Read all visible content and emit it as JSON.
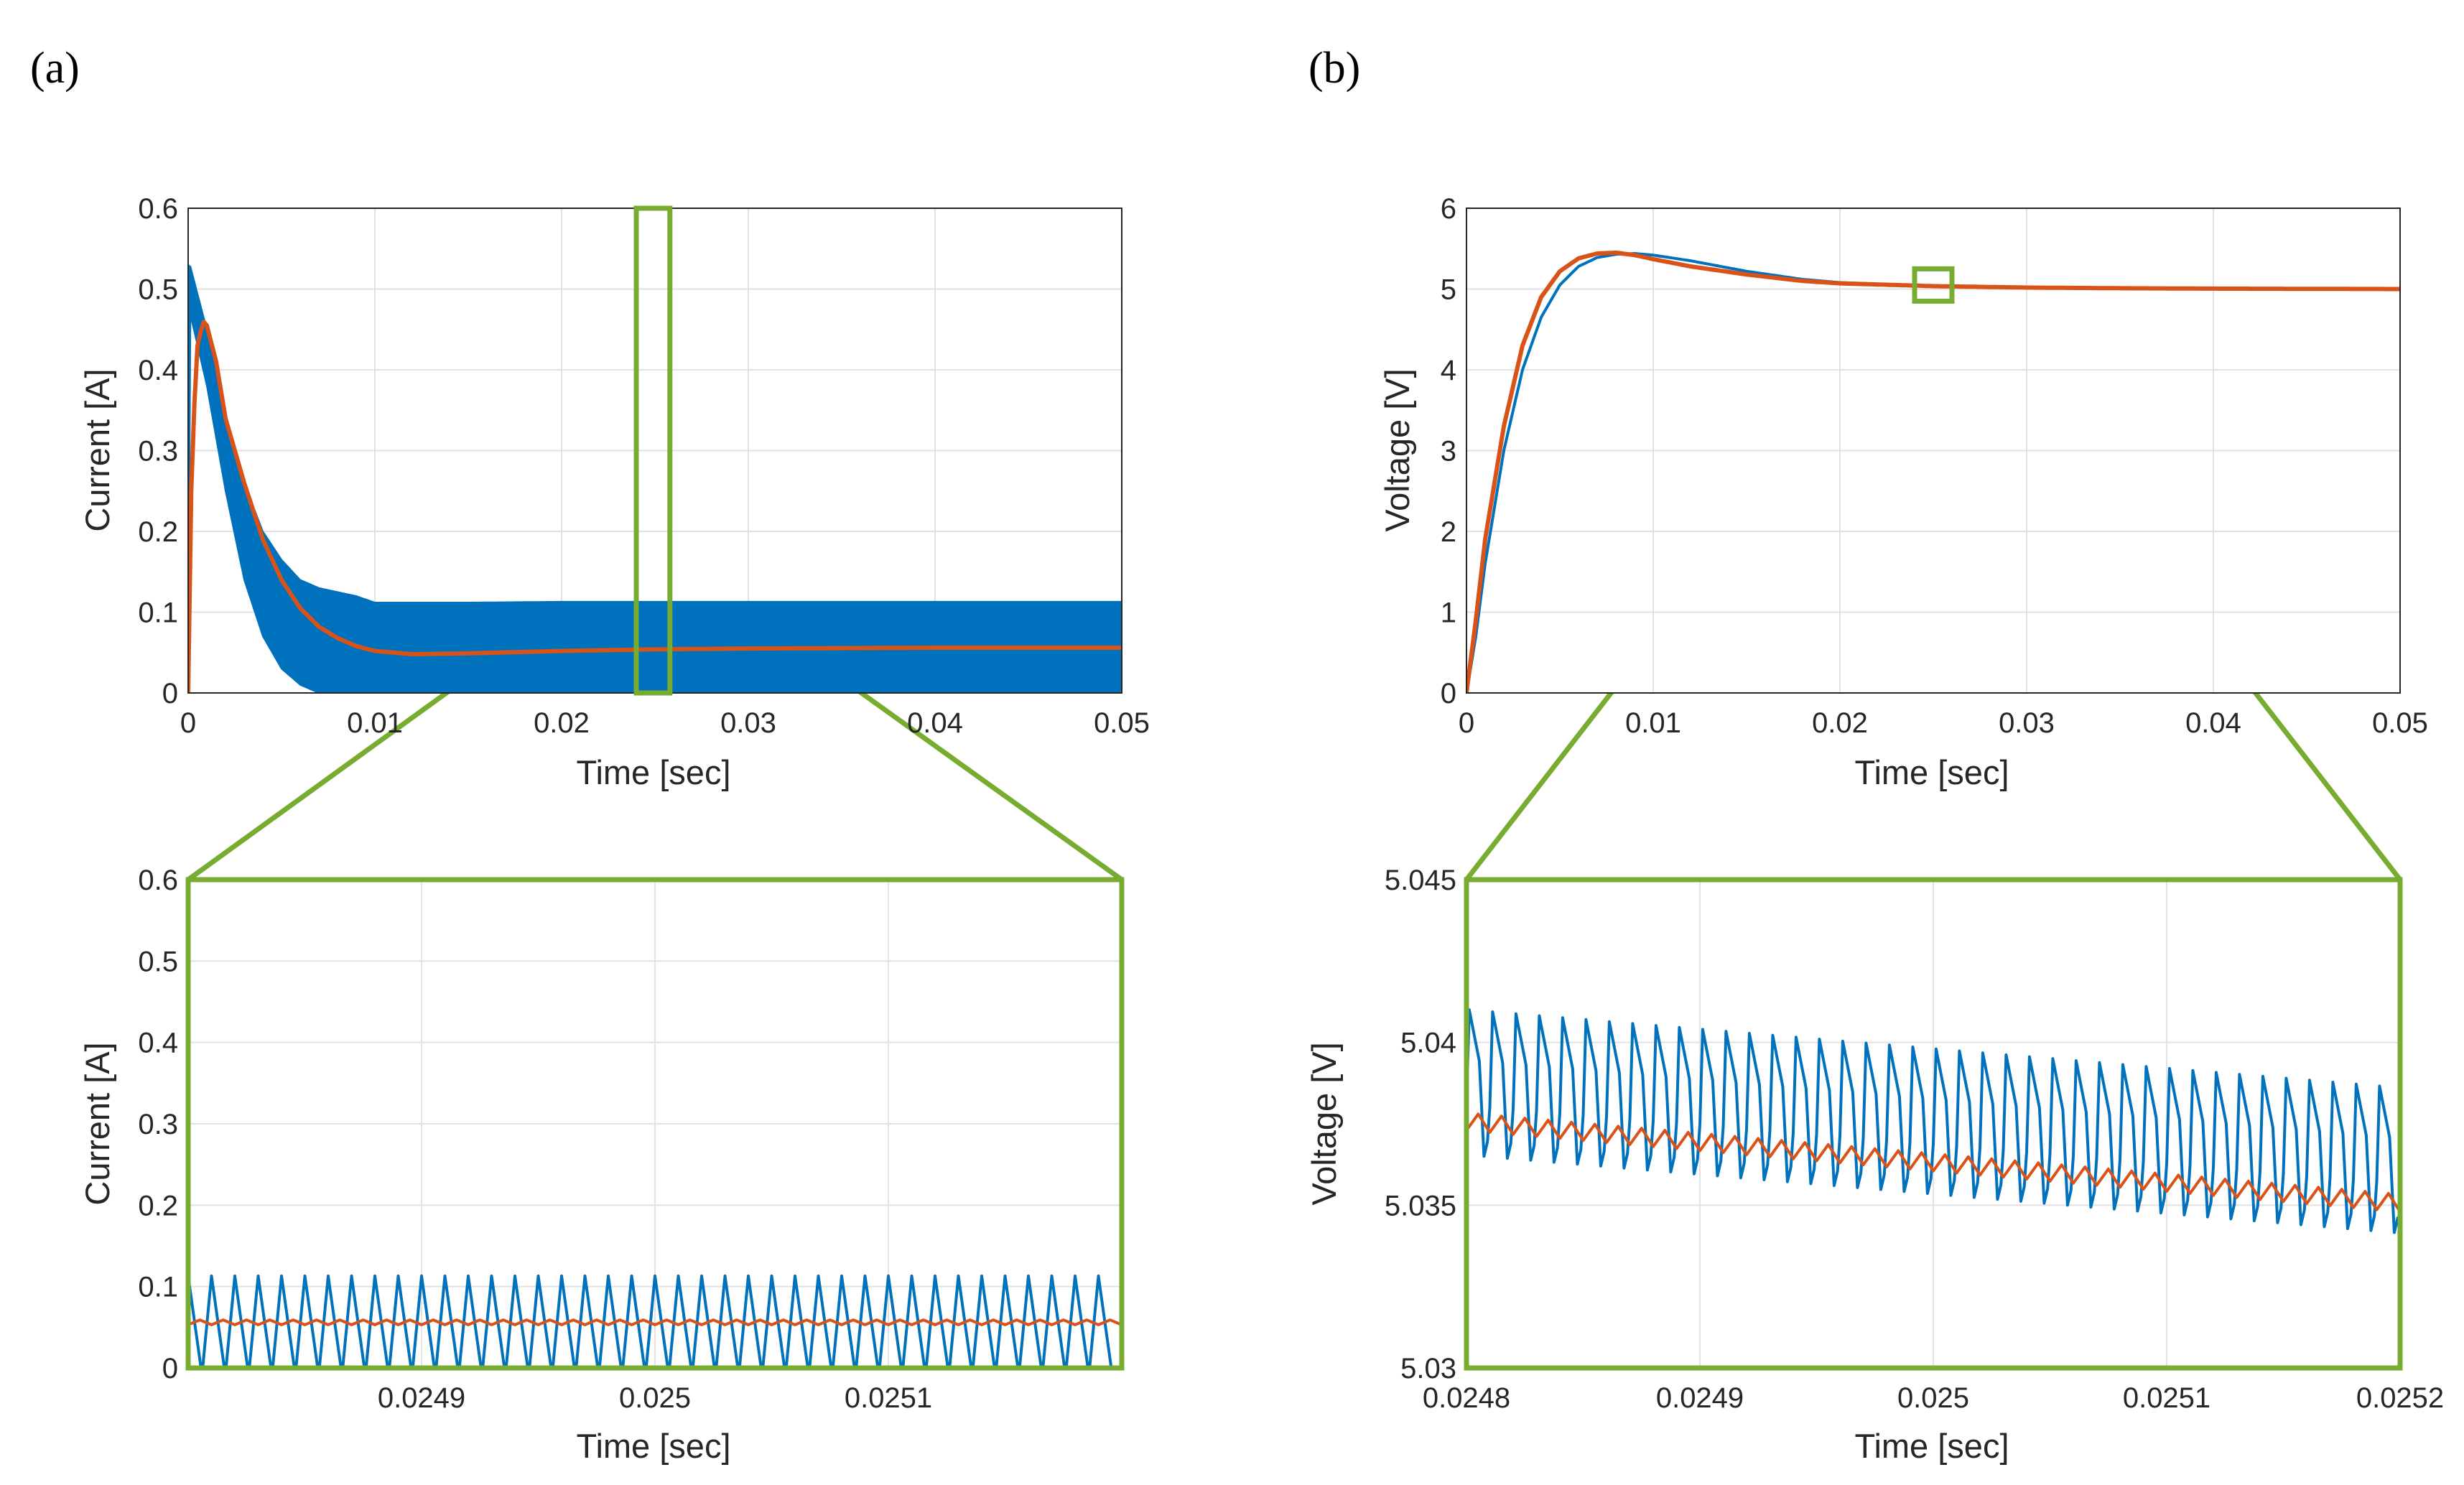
{
  "panels": [
    {
      "label": "(a)"
    },
    {
      "label": "(b)"
    }
  ],
  "colors": {
    "blue": "#0072BD",
    "orange": "#D95319",
    "zoom_green": "#77AC30",
    "grid": "#e2e2e2",
    "axis": "#262626"
  },
  "chart_data": [
    {
      "id": "a-top",
      "type": "line",
      "xlabel": "Time [sec]",
      "ylabel": "Current [A]",
      "xlim": [
        0,
        0.05
      ],
      "ylim": [
        0,
        0.6
      ],
      "xticks": [
        0,
        0.01,
        0.02,
        0.03,
        0.04,
        0.05
      ],
      "xtick_labels": [
        "0",
        "0.01",
        "0.02",
        "0.03",
        "0.04",
        "0.05"
      ],
      "yticks": [
        0,
        0.1,
        0.2,
        0.3,
        0.4,
        0.5,
        0.6
      ],
      "ytick_labels": [
        "0",
        "0.1",
        "0.2",
        "0.3",
        "0.4",
        "0.5",
        "0.6"
      ],
      "grid": true,
      "zoom_window": {
        "x": [
          0.024,
          0.0258
        ],
        "y": [
          0,
          0.6
        ]
      },
      "series": [
        {
          "color": "blue",
          "style": "ripple_band",
          "x": [
            0,
            0.0001,
            0.001,
            0.002,
            0.003,
            0.004,
            0.005,
            0.006,
            0.007,
            0.008,
            0.009,
            0.01,
            0.015,
            0.02,
            0.03,
            0.04,
            0.05
          ],
          "upper": [
            0.53,
            0.53,
            0.45,
            0.34,
            0.26,
            0.2,
            0.165,
            0.14,
            0.13,
            0.125,
            0.12,
            0.112,
            0.112,
            0.113,
            0.113,
            0.113,
            0.113
          ],
          "lower": [
            0,
            0.47,
            0.38,
            0.25,
            0.14,
            0.07,
            0.03,
            0.01,
            0,
            0,
            0,
            0,
            0,
            0,
            0,
            0,
            0
          ]
        },
        {
          "color": "orange",
          "style": "line",
          "x": [
            0,
            0.0002,
            0.0005,
            0.0008,
            0.001,
            0.0015,
            0.002,
            0.003,
            0.004,
            0.005,
            0.006,
            0.007,
            0.008,
            0.009,
            0.01,
            0.012,
            0.015,
            0.02,
            0.025,
            0.03,
            0.04,
            0.05
          ],
          "y": [
            0,
            0.3,
            0.43,
            0.46,
            0.455,
            0.41,
            0.34,
            0.26,
            0.19,
            0.14,
            0.105,
            0.082,
            0.068,
            0.058,
            0.052,
            0.048,
            0.049,
            0.052,
            0.054,
            0.055,
            0.056,
            0.056
          ]
        }
      ]
    },
    {
      "id": "a-bottom",
      "type": "line",
      "xlabel": "Time [sec]",
      "ylabel": "Current [A]",
      "xlim": [
        0.0248,
        0.0252
      ],
      "ylim": [
        0,
        0.6
      ],
      "xticks": [
        0.0249,
        0.025,
        0.0251
      ],
      "xtick_labels": [
        "0.0249",
        "0.025",
        "0.0251"
      ],
      "yticks": [
        0,
        0.1,
        0.2,
        0.3,
        0.4,
        0.5,
        0.6
      ],
      "ytick_labels": [
        "0",
        "0.1",
        "0.2",
        "0.3",
        "0.4",
        "0.5",
        "0.6"
      ],
      "grid": true,
      "framed_zoom": true,
      "series": [
        {
          "color": "blue",
          "style": "ripple",
          "cycles": 40,
          "min": 0,
          "max": 0.113,
          "mean_start": 0.056,
          "mean_end": 0.056,
          "shape": "triangle"
        },
        {
          "color": "orange",
          "style": "ripple",
          "cycles": 40,
          "min": 0.053,
          "max": 0.059,
          "mean_start": 0.056,
          "mean_end": 0.056,
          "shape": "saw"
        }
      ]
    },
    {
      "id": "b-top",
      "type": "line",
      "xlabel": "Time [sec]",
      "ylabel": "Voltage [V]",
      "xlim": [
        0,
        0.05
      ],
      "ylim": [
        0,
        6
      ],
      "xticks": [
        0,
        0.01,
        0.02,
        0.03,
        0.04,
        0.05
      ],
      "xtick_labels": [
        "0",
        "0.01",
        "0.02",
        "0.03",
        "0.04",
        "0.05"
      ],
      "yticks": [
        0,
        1,
        2,
        3,
        4,
        5,
        6
      ],
      "ytick_labels": [
        "0",
        "1",
        "2",
        "3",
        "4",
        "5",
        "6"
      ],
      "grid": true,
      "zoom_window": {
        "x": [
          0.024,
          0.026
        ],
        "y": [
          4.85,
          5.25
        ]
      },
      "series": [
        {
          "color": "blue",
          "style": "line",
          "x": [
            0,
            0.0005,
            0.001,
            0.002,
            0.003,
            0.004,
            0.005,
            0.006,
            0.007,
            0.008,
            0.009,
            0.01,
            0.012,
            0.015,
            0.018,
            0.02,
            0.025,
            0.03,
            0.035,
            0.04,
            0.05
          ],
          "y": [
            0,
            0.7,
            1.6,
            3.0,
            4.0,
            4.65,
            5.05,
            5.28,
            5.39,
            5.43,
            5.44,
            5.42,
            5.35,
            5.22,
            5.12,
            5.08,
            5.036,
            5.018,
            5.01,
            5.005,
            5.0
          ]
        },
        {
          "color": "orange",
          "style": "line",
          "x": [
            0,
            0.0005,
            0.001,
            0.002,
            0.003,
            0.004,
            0.005,
            0.006,
            0.007,
            0.008,
            0.009,
            0.01,
            0.012,
            0.015,
            0.018,
            0.02,
            0.025,
            0.03,
            0.035,
            0.04,
            0.05
          ],
          "y": [
            0,
            0.9,
            1.9,
            3.3,
            4.3,
            4.9,
            5.22,
            5.38,
            5.44,
            5.45,
            5.42,
            5.37,
            5.28,
            5.18,
            5.1,
            5.07,
            5.036,
            5.018,
            5.01,
            5.005,
            5.0
          ]
        }
      ]
    },
    {
      "id": "b-bottom",
      "type": "line",
      "xlabel": "Time [sec]",
      "ylabel": "Voltage [V]",
      "xlim": [
        0.0248,
        0.0252
      ],
      "ylim": [
        5.03,
        5.045
      ],
      "xticks": [
        0.0248,
        0.0249,
        0.025,
        0.0251,
        0.0252
      ],
      "xtick_labels": [
        "0.0248",
        "0.0249",
        "0.025",
        "0.0251",
        "0.0252"
      ],
      "yticks": [
        5.03,
        5.035,
        5.04,
        5.045
      ],
      "ytick_labels": [
        "5.03",
        "5.035",
        "5.04",
        "5.045"
      ],
      "grid": true,
      "framed_zoom": true,
      "series": [
        {
          "color": "blue",
          "style": "ripple",
          "cycles": 40,
          "min_start": 5.0365,
          "max_start": 5.041,
          "min_end": 5.0341,
          "max_end": 5.0386,
          "shape": "spike"
        },
        {
          "color": "orange",
          "style": "ripple",
          "cycles": 40,
          "min_start": 5.0373,
          "max_start": 5.0378,
          "min_end": 5.0348,
          "max_end": 5.0353,
          "shape": "saw"
        }
      ]
    }
  ]
}
